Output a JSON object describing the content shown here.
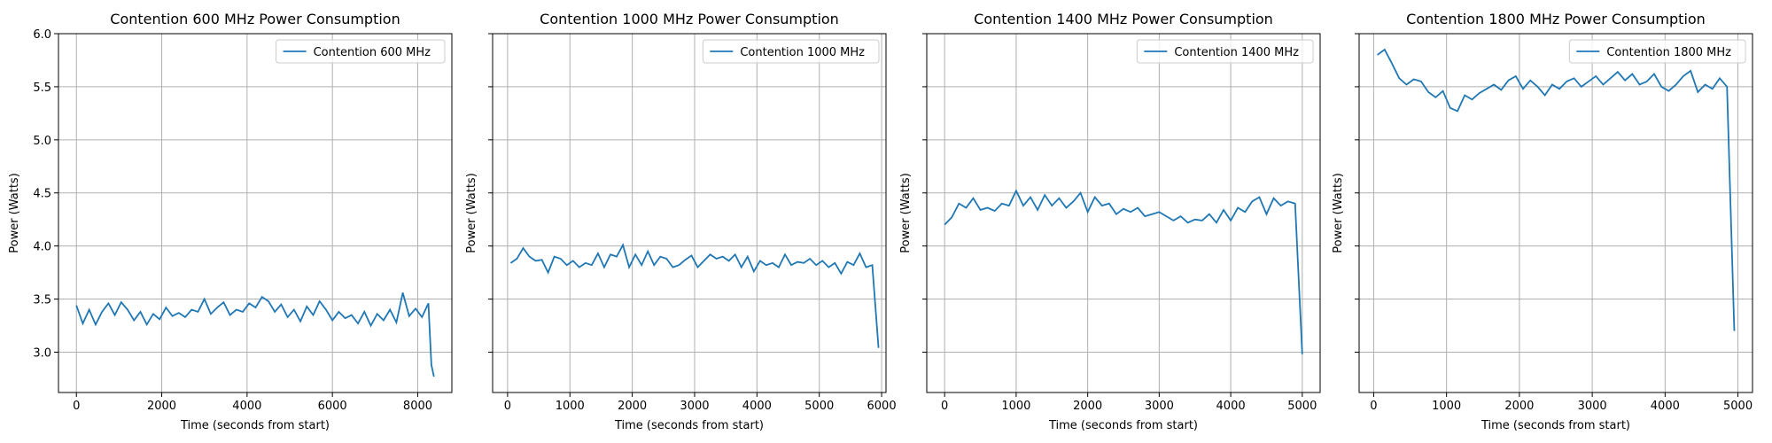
{
  "chart_data": [
    {
      "type": "line",
      "title": "Contention 600 MHz Power Consumption",
      "x_label": "Time (seconds from start)",
      "y_label": "Power (Watts)",
      "x": [
        0,
        150,
        300,
        450,
        600,
        750,
        900,
        1050,
        1200,
        1350,
        1500,
        1650,
        1800,
        1950,
        2100,
        2250,
        2400,
        2550,
        2700,
        2850,
        3000,
        3150,
        3300,
        3450,
        3600,
        3750,
        3900,
        4050,
        4200,
        4350,
        4500,
        4650,
        4800,
        4950,
        5100,
        5250,
        5400,
        5550,
        5700,
        5850,
        6000,
        6150,
        6300,
        6450,
        6600,
        6750,
        6900,
        7050,
        7200,
        7350,
        7500,
        7650,
        7800,
        7950,
        8100,
        8250,
        8320,
        8380
      ],
      "series": [
        {
          "name": "Contention 600 MHz",
          "color": "#1f77b4",
          "values": [
            3.44,
            3.27,
            3.4,
            3.26,
            3.38,
            3.46,
            3.35,
            3.47,
            3.4,
            3.3,
            3.38,
            3.26,
            3.36,
            3.31,
            3.42,
            3.34,
            3.37,
            3.33,
            3.4,
            3.38,
            3.5,
            3.36,
            3.42,
            3.47,
            3.35,
            3.4,
            3.38,
            3.46,
            3.42,
            3.52,
            3.48,
            3.38,
            3.45,
            3.33,
            3.4,
            3.29,
            3.43,
            3.35,
            3.48,
            3.4,
            3.3,
            3.38,
            3.32,
            3.35,
            3.27,
            3.38,
            3.25,
            3.36,
            3.3,
            3.4,
            3.28,
            3.56,
            3.34,
            3.41,
            3.33,
            3.46,
            2.88,
            2.77
          ]
        }
      ],
      "xlim": [
        -420,
        8800
      ],
      "ylim": [
        2.62,
        6.0
      ],
      "xticks": [
        0,
        2000,
        4000,
        6000,
        8000
      ],
      "yticks": [
        {
          "value": 3,
          "label": "3.0"
        },
        {
          "value": 3.5,
          "label": "3.5"
        },
        {
          "value": 4,
          "label": "4.0"
        },
        {
          "value": 4.5,
          "label": "4.5"
        },
        {
          "value": 5,
          "label": "5.0"
        },
        {
          "value": 5.5,
          "label": "5.5"
        },
        {
          "value": 6,
          "label": "6.0"
        }
      ],
      "grid": true,
      "legend": "upper right"
    },
    {
      "type": "line",
      "title": "Contention 1000 MHz Power Consumption",
      "x_label": "Time (seconds from start)",
      "y_label": "Power (Watts)",
      "x": [
        50,
        150,
        250,
        350,
        450,
        550,
        650,
        750,
        850,
        950,
        1050,
        1150,
        1250,
        1350,
        1450,
        1550,
        1650,
        1750,
        1850,
        1950,
        2050,
        2150,
        2250,
        2350,
        2450,
        2550,
        2650,
        2750,
        2850,
        2950,
        3050,
        3150,
        3250,
        3350,
        3450,
        3550,
        3650,
        3750,
        3850,
        3950,
        4050,
        4150,
        4250,
        4350,
        4450,
        4550,
        4650,
        4750,
        4850,
        4950,
        5050,
        5150,
        5250,
        5350,
        5450,
        5550,
        5650,
        5750,
        5850,
        5950
      ],
      "series": [
        {
          "name": "Contention 1000 MHz",
          "color": "#1f77b4",
          "values": [
            3.84,
            3.88,
            3.98,
            3.9,
            3.86,
            3.87,
            3.75,
            3.9,
            3.88,
            3.82,
            3.86,
            3.8,
            3.84,
            3.82,
            3.93,
            3.8,
            3.92,
            3.9,
            4.01,
            3.8,
            3.92,
            3.82,
            3.95,
            3.82,
            3.9,
            3.88,
            3.8,
            3.82,
            3.87,
            3.91,
            3.8,
            3.86,
            3.92,
            3.88,
            3.9,
            3.86,
            3.92,
            3.8,
            3.9,
            3.76,
            3.86,
            3.82,
            3.84,
            3.8,
            3.92,
            3.82,
            3.85,
            3.84,
            3.88,
            3.82,
            3.86,
            3.8,
            3.84,
            3.74,
            3.85,
            3.82,
            3.93,
            3.8,
            3.82,
            3.04
          ]
        }
      ],
      "xlim": [
        -240,
        6070
      ],
      "ylim": [
        2.62,
        6.0
      ],
      "xticks": [
        0,
        1000,
        2000,
        3000,
        4000,
        5000,
        6000
      ],
      "yticks": [
        3,
        3.5,
        4,
        4.5,
        5,
        5.5,
        6
      ],
      "grid": true,
      "legend": "upper right"
    },
    {
      "type": "line",
      "title": "Contention 1400 MHz Power Consumption",
      "x_label": "Time (seconds from start)",
      "y_label": "Power (Watts)",
      "x": [
        0,
        100,
        200,
        300,
        400,
        500,
        600,
        700,
        800,
        900,
        1000,
        1100,
        1200,
        1300,
        1400,
        1500,
        1600,
        1700,
        1800,
        1900,
        2000,
        2100,
        2200,
        2300,
        2400,
        2500,
        2600,
        2700,
        2800,
        2900,
        3000,
        3100,
        3200,
        3300,
        3400,
        3500,
        3600,
        3700,
        3800,
        3900,
        4000,
        4100,
        4200,
        4300,
        4400,
        4500,
        4600,
        4700,
        4800,
        4900,
        5000
      ],
      "series": [
        {
          "name": "Contention 1400 MHz",
          "color": "#1f77b4",
          "values": [
            4.2,
            4.27,
            4.4,
            4.36,
            4.45,
            4.34,
            4.36,
            4.33,
            4.4,
            4.38,
            4.52,
            4.38,
            4.46,
            4.34,
            4.48,
            4.38,
            4.45,
            4.36,
            4.42,
            4.5,
            4.32,
            4.46,
            4.38,
            4.4,
            4.3,
            4.35,
            4.32,
            4.36,
            4.28,
            4.3,
            4.32,
            4.28,
            4.24,
            4.28,
            4.22,
            4.25,
            4.24,
            4.3,
            4.22,
            4.34,
            4.24,
            4.36,
            4.32,
            4.42,
            4.46,
            4.3,
            4.45,
            4.38,
            4.42,
            4.4,
            2.98
          ]
        }
      ],
      "xlim": [
        -250,
        5250
      ],
      "ylim": [
        2.62,
        6.0
      ],
      "xticks": [
        0,
        1000,
        2000,
        3000,
        4000,
        5000
      ],
      "yticks": [
        3,
        3.5,
        4,
        4.5,
        5,
        5.5,
        6
      ],
      "grid": true,
      "legend": "upper right"
    },
    {
      "type": "line",
      "title": "Contention 1800 MHz Power Consumption",
      "x_label": "Time (seconds from start)",
      "y_label": "Power (Watts)",
      "x": [
        50,
        150,
        250,
        350,
        450,
        550,
        650,
        750,
        850,
        950,
        1050,
        1150,
        1250,
        1350,
        1450,
        1550,
        1650,
        1750,
        1850,
        1950,
        2050,
        2150,
        2250,
        2350,
        2450,
        2550,
        2650,
        2750,
        2850,
        2950,
        3050,
        3150,
        3250,
        3350,
        3450,
        3550,
        3650,
        3750,
        3850,
        3950,
        4050,
        4150,
        4250,
        4350,
        4450,
        4550,
        4650,
        4750,
        4850,
        4950
      ],
      "series": [
        {
          "name": "Contention 1800 MHz",
          "color": "#1f77b4",
          "values": [
            5.8,
            5.85,
            5.72,
            5.58,
            5.52,
            5.57,
            5.55,
            5.45,
            5.4,
            5.46,
            5.3,
            5.27,
            5.42,
            5.38,
            5.44,
            5.48,
            5.52,
            5.47,
            5.56,
            5.6,
            5.48,
            5.56,
            5.5,
            5.42,
            5.52,
            5.48,
            5.55,
            5.58,
            5.5,
            5.55,
            5.6,
            5.52,
            5.58,
            5.64,
            5.56,
            5.62,
            5.52,
            5.55,
            5.62,
            5.5,
            5.46,
            5.52,
            5.6,
            5.65,
            5.45,
            5.52,
            5.48,
            5.58,
            5.5,
            3.2
          ]
        }
      ],
      "xlim": [
        -200,
        5200
      ],
      "ylim": [
        2.62,
        6.0
      ],
      "xticks": [
        0,
        1000,
        2000,
        3000,
        4000,
        5000
      ],
      "yticks": [
        3,
        3.5,
        4,
        4.5,
        5,
        5.5,
        6
      ],
      "grid": true,
      "legend": "upper right"
    }
  ]
}
